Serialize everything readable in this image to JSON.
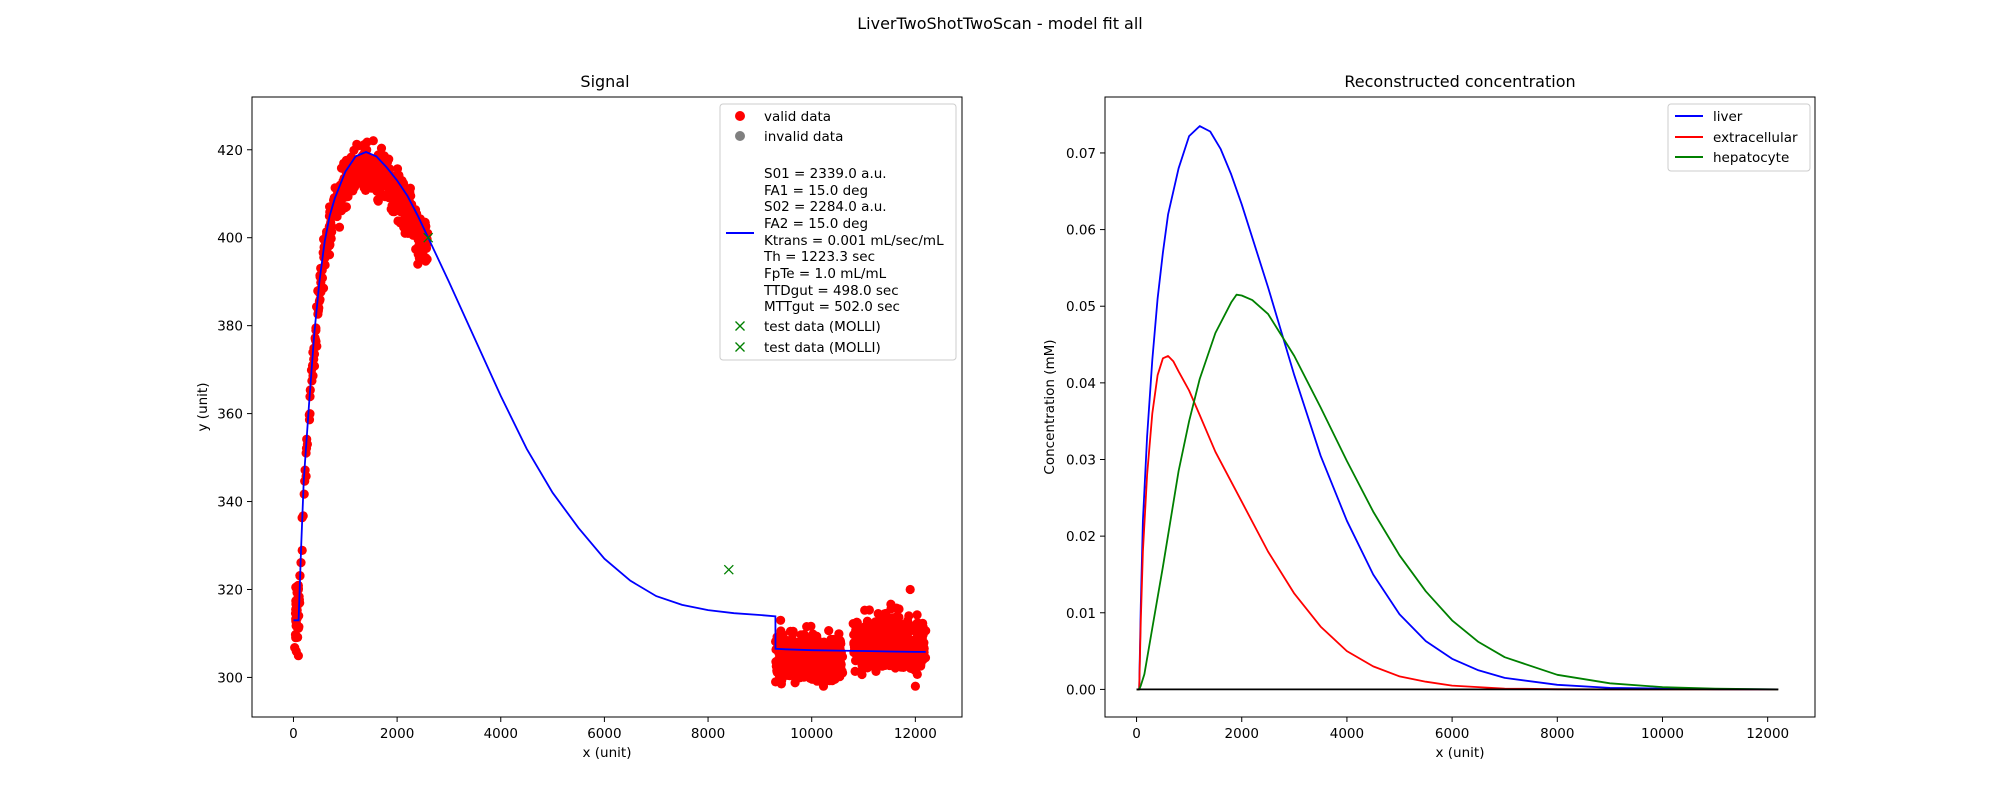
{
  "figure": {
    "suptitle": "LiverTwoShotTwoScan - model fit all"
  },
  "colors": {
    "valid": "#ff0000",
    "invalid": "#808080",
    "fit": "#0000ff",
    "test": "#008000",
    "extracellular": "#ff0000",
    "hepatocyte": "#008000",
    "baseline": "#000000"
  },
  "chart_data": [
    {
      "type": "scatter",
      "title": "Signal",
      "xlabel": "x (unit)",
      "ylabel": "y (unit)",
      "xlim": [
        -800,
        12900
      ],
      "ylim": [
        291,
        432
      ],
      "xticks": [
        0,
        2000,
        4000,
        6000,
        8000,
        10000,
        12000
      ],
      "yticks": [
        300,
        320,
        340,
        360,
        380,
        400,
        420
      ],
      "grid": false,
      "legend_position": "top-right",
      "legend": [
        "valid data",
        "invalid data",
        "S01 = 2339.0 a.u.",
        "FA1 = 15.0 deg",
        "S02 = 2284.0 a.u.",
        "FA2 = 15.0 deg",
        "Ktrans = 0.001 mL/sec/mL",
        "Th = 1223.3 sec",
        "FpTe = 1.0 mL/mL",
        "TTDgut = 498.0 sec",
        "MTTgut = 502.0 sec",
        "test data (MOLLI)",
        "test data (MOLLI)"
      ],
      "valid_data_regions": [
        {
          "x_range": [
            0,
            2600
          ],
          "description_shape": "rise from ~310 at x=0 to ~420 at x≈1300, then decline to ~400 at x≈2600, spread ±6"
        },
        {
          "x_range": [
            9300,
            10600
          ],
          "y_center": 304,
          "spread": 6
        },
        {
          "x_range": [
            10800,
            12200
          ],
          "y_center": 308,
          "spread": 7
        }
      ],
      "model_fit": {
        "x": [
          0,
          50,
          100,
          150,
          200,
          300,
          400,
          500,
          600,
          700,
          800,
          1000,
          1200,
          1400,
          1600,
          1800,
          2000,
          2200,
          2400,
          2600,
          3000,
          3500,
          4000,
          4500,
          5000,
          5500,
          6000,
          6500,
          7000,
          7500,
          8000,
          8500,
          9000,
          9300,
          9301,
          9500,
          10000,
          10500,
          11000,
          11500,
          12000,
          12200
        ],
        "y": [
          313,
          313,
          313,
          330,
          345,
          362,
          378,
          390,
          399,
          405,
          409,
          415,
          418.5,
          419.5,
          418.5,
          416,
          413,
          409.5,
          405,
          400,
          390,
          377,
          364,
          352,
          342,
          334,
          327,
          322,
          318.5,
          316.5,
          315.3,
          314.6,
          314.2,
          313.9,
          306.5,
          306.4,
          306.2,
          306.1,
          306.0,
          305.9,
          305.8,
          305.8
        ]
      },
      "test_data": [
        {
          "x": 2600,
          "y": 400
        },
        {
          "x": 8400,
          "y": 324.5
        }
      ]
    },
    {
      "type": "line",
      "title": "Reconstructed concentration",
      "xlabel": "x (unit)",
      "ylabel": "Concentration (mM)",
      "xlim": [
        -600,
        12900
      ],
      "ylim": [
        -0.0036,
        0.0773
      ],
      "xticks": [
        0,
        2000,
        4000,
        6000,
        8000,
        10000,
        12000
      ],
      "yticks": [
        0.0,
        0.01,
        0.02,
        0.03,
        0.04,
        0.05,
        0.06,
        0.07
      ],
      "ytick_labels": [
        "0.00",
        "0.01",
        "0.02",
        "0.03",
        "0.04",
        "0.05",
        "0.06",
        "0.07"
      ],
      "grid": false,
      "legend_position": "top-right",
      "series": [
        {
          "name": "liver",
          "x": [
            0,
            50,
            80,
            120,
            200,
            300,
            400,
            500,
            600,
            800,
            1000,
            1200,
            1400,
            1600,
            1800,
            2000,
            2500,
            3000,
            3500,
            4000,
            4500,
            5000,
            5500,
            6000,
            6500,
            7000,
            8000,
            9000,
            10000,
            11000,
            12200
          ],
          "y": [
            0,
            0,
            0.011,
            0.022,
            0.033,
            0.043,
            0.051,
            0.057,
            0.062,
            0.068,
            0.0722,
            0.0735,
            0.0728,
            0.0705,
            0.0672,
            0.0633,
            0.0525,
            0.041,
            0.0305,
            0.022,
            0.015,
            0.0098,
            0.0063,
            0.004,
            0.0025,
            0.0015,
            0.0006,
            0.0002,
            0.0001,
            3e-05,
            0.0
          ]
        },
        {
          "name": "extracellular",
          "x": [
            0,
            50,
            80,
            120,
            200,
            300,
            400,
            500,
            600,
            700,
            800,
            1000,
            1200,
            1500,
            2000,
            2500,
            3000,
            3500,
            4000,
            4500,
            5000,
            5500,
            6000,
            7000,
            8000,
            9000,
            10000,
            12200
          ],
          "y": [
            0,
            0,
            0.009,
            0.018,
            0.028,
            0.036,
            0.041,
            0.0432,
            0.0435,
            0.0428,
            0.0415,
            0.039,
            0.0358,
            0.031,
            0.0245,
            0.018,
            0.0125,
            0.0082,
            0.005,
            0.003,
            0.0017,
            0.001,
            0.0005,
            0.0001,
            3e-05,
            0.0,
            0.0,
            0.0
          ]
        },
        {
          "name": "hepatocyte",
          "x": [
            0,
            50,
            80,
            150,
            300,
            500,
            800,
            1000,
            1200,
            1500,
            1800,
            1900,
            2000,
            2200,
            2500,
            3000,
            3500,
            4000,
            4500,
            5000,
            5500,
            6000,
            6500,
            7000,
            8000,
            9000,
            10000,
            11000,
            12200
          ],
          "y": [
            0,
            0,
            0.0005,
            0.002,
            0.008,
            0.016,
            0.0285,
            0.035,
            0.0405,
            0.0465,
            0.0505,
            0.0515,
            0.0514,
            0.0508,
            0.049,
            0.0435,
            0.0368,
            0.0298,
            0.0232,
            0.0175,
            0.0128,
            0.009,
            0.0062,
            0.0042,
            0.0019,
            0.0008,
            0.0003,
            0.0001,
            0.0
          ]
        },
        {
          "name": "",
          "x": [
            0,
            12200
          ],
          "y": [
            0,
            0
          ]
        }
      ]
    }
  ]
}
